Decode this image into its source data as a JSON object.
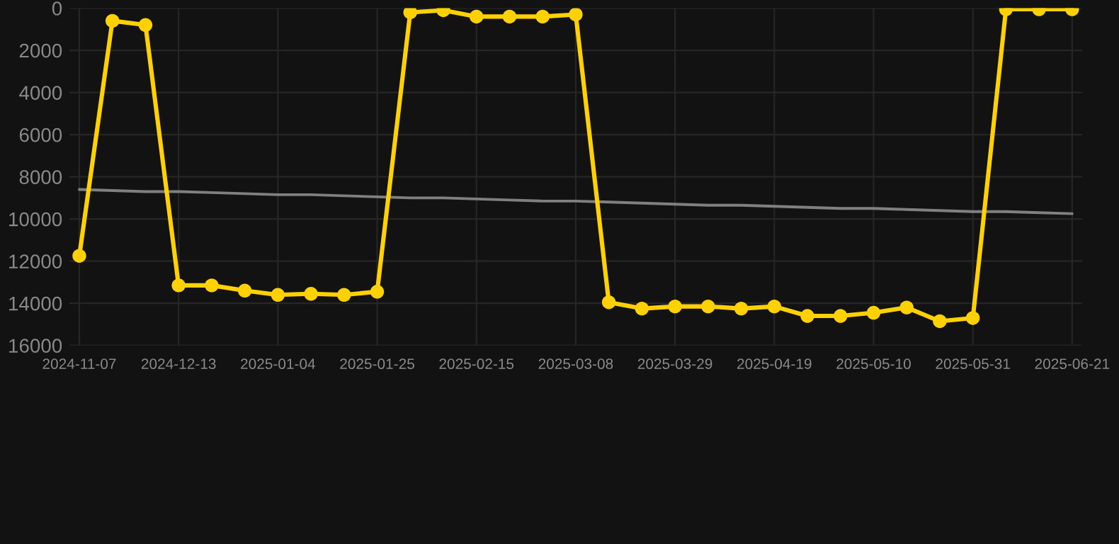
{
  "chart_data": {
    "type": "line",
    "categories": [
      "2024-11-07",
      null,
      null,
      "2024-12-13",
      null,
      null,
      "2025-01-04",
      null,
      null,
      "2025-01-25",
      null,
      null,
      "2025-02-15",
      null,
      null,
      "2025-03-08",
      null,
      null,
      "2025-03-29",
      null,
      null,
      "2025-04-19",
      null,
      null,
      "2025-05-10",
      null,
      null,
      "2025-05-31",
      null,
      null,
      "2025-06-21"
    ],
    "series": [
      {
        "color": "#ffd100",
        "marker": "circle",
        "values": [
          11750,
          600,
          800,
          13150,
          13150,
          13400,
          13600,
          13550,
          13600,
          13450,
          200,
          100,
          400,
          400,
          400,
          300,
          13950,
          14250,
          14150,
          14150,
          14250,
          14150,
          14600,
          14600,
          14450,
          14200,
          14850,
          14700,
          50,
          50,
          50
        ]
      },
      {
        "type": "line",
        "color": "#808080",
        "marker": "none",
        "values": [
          8600,
          8650,
          8700,
          8700,
          8750,
          8800,
          8850,
          8850,
          8900,
          8950,
          9000,
          9000,
          9050,
          9100,
          9150,
          9150,
          9200,
          9250,
          9300,
          9350,
          9350,
          9400,
          9450,
          9500,
          9500,
          9550,
          9600,
          9650,
          9650,
          9700,
          9750
        ]
      }
    ],
    "ylim": [
      16000,
      0
    ],
    "yticks": [
      0,
      2000,
      4000,
      6000,
      8000,
      10000,
      12000,
      14000,
      16000
    ],
    "grid": true
  }
}
